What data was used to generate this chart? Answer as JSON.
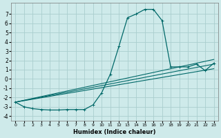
{
  "xlabel": "Humidex (Indice chaleur)",
  "xlim": [
    -0.5,
    23.5
  ],
  "ylim": [
    -4.5,
    8.2
  ],
  "yticks": [
    -4,
    -3,
    -2,
    -1,
    0,
    1,
    2,
    3,
    4,
    5,
    6,
    7
  ],
  "xticks": [
    0,
    1,
    2,
    3,
    4,
    5,
    6,
    7,
    8,
    9,
    10,
    11,
    12,
    13,
    14,
    15,
    16,
    17,
    18,
    19,
    20,
    21,
    22,
    23
  ],
  "background_color": "#ceeaea",
  "grid_color": "#aacece",
  "line_color": "#006868",
  "main_series": {
    "x": [
      0,
      1,
      2,
      3,
      4,
      5,
      6,
      7,
      8,
      9,
      10,
      11,
      12,
      13,
      14,
      15,
      16,
      17,
      18,
      19,
      20,
      21,
      22,
      23
    ],
    "y": [
      -2.5,
      -3.0,
      -3.2,
      -3.3,
      -3.35,
      -3.35,
      -3.3,
      -3.3,
      -3.3,
      -2.8,
      -1.5,
      0.5,
      3.5,
      6.6,
      7.0,
      7.5,
      7.5,
      6.3,
      1.3,
      1.3,
      1.3,
      1.6,
      0.9,
      1.7
    ]
  },
  "linear_series": [
    {
      "x": [
        0,
        23
      ],
      "y": [
        -2.5,
        2.1
      ]
    },
    {
      "x": [
        0,
        23
      ],
      "y": [
        -2.5,
        1.6
      ]
    },
    {
      "x": [
        0,
        23
      ],
      "y": [
        -2.5,
        1.1
      ]
    }
  ]
}
